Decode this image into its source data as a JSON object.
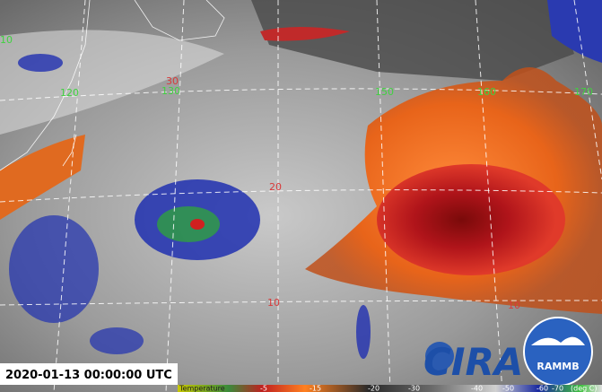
{
  "timestamp": "2020-01-13 00:00:00 UTC",
  "grid_labels": {
    "longitudes": [
      "10",
      "120",
      "130",
      "150",
      "160",
      "170"
    ],
    "latitudes": [
      "30",
      "20",
      "10",
      "10"
    ]
  },
  "logos": {
    "cira": "CIRA",
    "rammb": "RAMMB"
  },
  "colorbar": {
    "title": "Temperature",
    "labels": [
      "-5",
      "-15",
      "-20",
      "-30",
      "-40",
      "-50",
      "-60",
      "-70"
    ],
    "unit": "(deg C)"
  }
}
